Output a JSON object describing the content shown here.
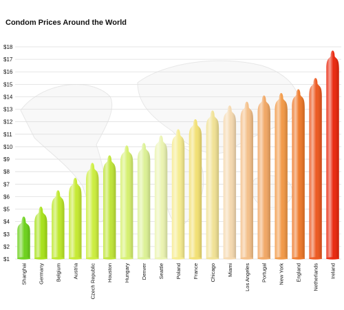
{
  "chart_data": {
    "type": "bar",
    "title": "Condom Prices Around the World",
    "xlabel": "",
    "ylabel": "",
    "ylim": [
      1,
      18
    ],
    "y_ticks": [
      "$1",
      "$2",
      "$3",
      "$4",
      "$5",
      "$6",
      "$7",
      "$8",
      "$9",
      "$10",
      "$11",
      "$12",
      "$13",
      "$14",
      "$15",
      "$16",
      "$17",
      "$18"
    ],
    "grid": true,
    "bar_shape": "condom",
    "categories": [
      "Shanghai",
      "Germany",
      "Belgium",
      "Austria",
      "Czech Republic",
      "Houston",
      "Hungary",
      "Denver",
      "Seattle",
      "Poland",
      "France",
      "Chicago",
      "Miami",
      "Los Angeles",
      "Portugal",
      "New York",
      "England",
      "Netherlands",
      "Ireland"
    ],
    "values": [
      4.5,
      5.3,
      6.6,
      7.6,
      8.8,
      9.4,
      10.2,
      10.4,
      11.0,
      11.5,
      12.3,
      13.0,
      13.4,
      13.7,
      14.2,
      14.4,
      14.7,
      15.6,
      17.8
    ],
    "colors": [
      "#6ed21e",
      "#a8e21c",
      "#bde82a",
      "#c6ea33",
      "#cdee40",
      "#c0e53a",
      "#d6f070",
      "#dcf196",
      "#ebf4b2",
      "#f6ec90",
      "#f2e074",
      "#f1e296",
      "#f5d9b0",
      "#f4c08a",
      "#f1a866",
      "#f29a48",
      "#ee7a2c",
      "#ec5a22",
      "#ea2a10"
    ]
  }
}
